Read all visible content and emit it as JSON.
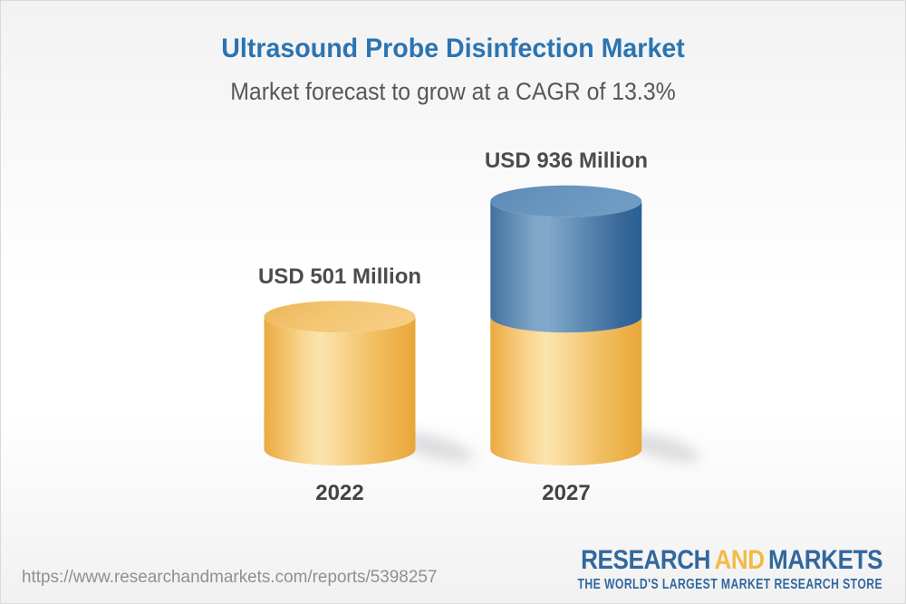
{
  "title": "Ultrasound Probe Disinfection Market",
  "subtitle": "Market forecast to grow at a CAGR of 13.3%",
  "footer": {
    "url": "https://www.researchandmarkets.com/reports/5398257",
    "logo": {
      "word1": "RESEARCH",
      "word2": "AND",
      "word3": "MARKETS",
      "tagline": "THE WORLD'S LARGEST MARKET RESEARCH STORE"
    }
  },
  "chart_data": {
    "type": "bar",
    "categories": [
      "2022",
      "2027"
    ],
    "values": [
      501,
      936
    ],
    "value_labels": [
      "USD 501 Million",
      "USD 936 Million"
    ],
    "title": "Ultrasound Probe Disinfection Market",
    "subtitle": "Market forecast to grow at a CAGR of 13.3%",
    "unit": "USD Million",
    "cagr_percent": 13.3,
    "legend_position": "none",
    "grid": false,
    "bar_style": "3d-cylinder",
    "series_note": "2027 bar is stacked: base equals 2022 value (gold), growth above it (blue)",
    "colors": {
      "base_segment": "#F2C36C",
      "growth_segment": "#6593BD",
      "label_text": "#4A4C4F"
    }
  }
}
